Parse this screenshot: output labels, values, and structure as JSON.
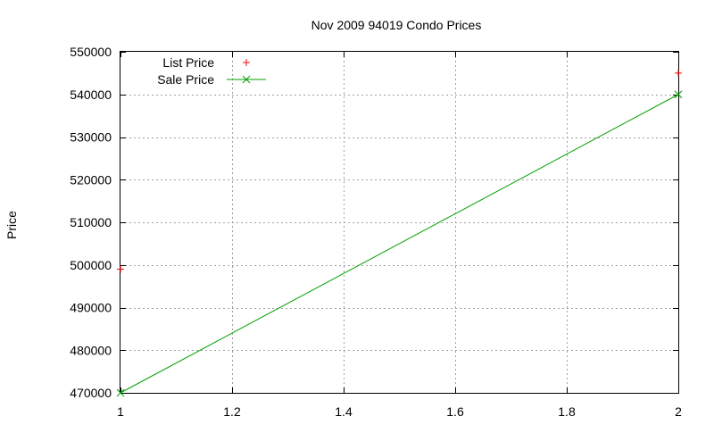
{
  "chart_data": {
    "type": "line",
    "title": "Nov 2009 94019 Condo Prices",
    "xlabel": "",
    "ylabel": "Price",
    "xlim": [
      1,
      2
    ],
    "ylim": [
      470000,
      550000
    ],
    "x_ticks": [
      "1",
      "1.2",
      "1.4",
      "1.6",
      "1.8",
      "2"
    ],
    "y_ticks": [
      "470000",
      "480000",
      "490000",
      "500000",
      "510000",
      "520000",
      "530000",
      "540000",
      "550000"
    ],
    "grid": true,
    "legend_position": "top-left",
    "series": [
      {
        "name": "List Price",
        "style": "points",
        "marker": "+",
        "color": "#ff0000",
        "x": [
          1,
          2
        ],
        "y": [
          499000,
          545000
        ]
      },
      {
        "name": "Sale Price",
        "style": "linespoints",
        "marker": "x",
        "color": "#00a000",
        "x": [
          1,
          2
        ],
        "y": [
          470000,
          540000
        ]
      }
    ]
  }
}
